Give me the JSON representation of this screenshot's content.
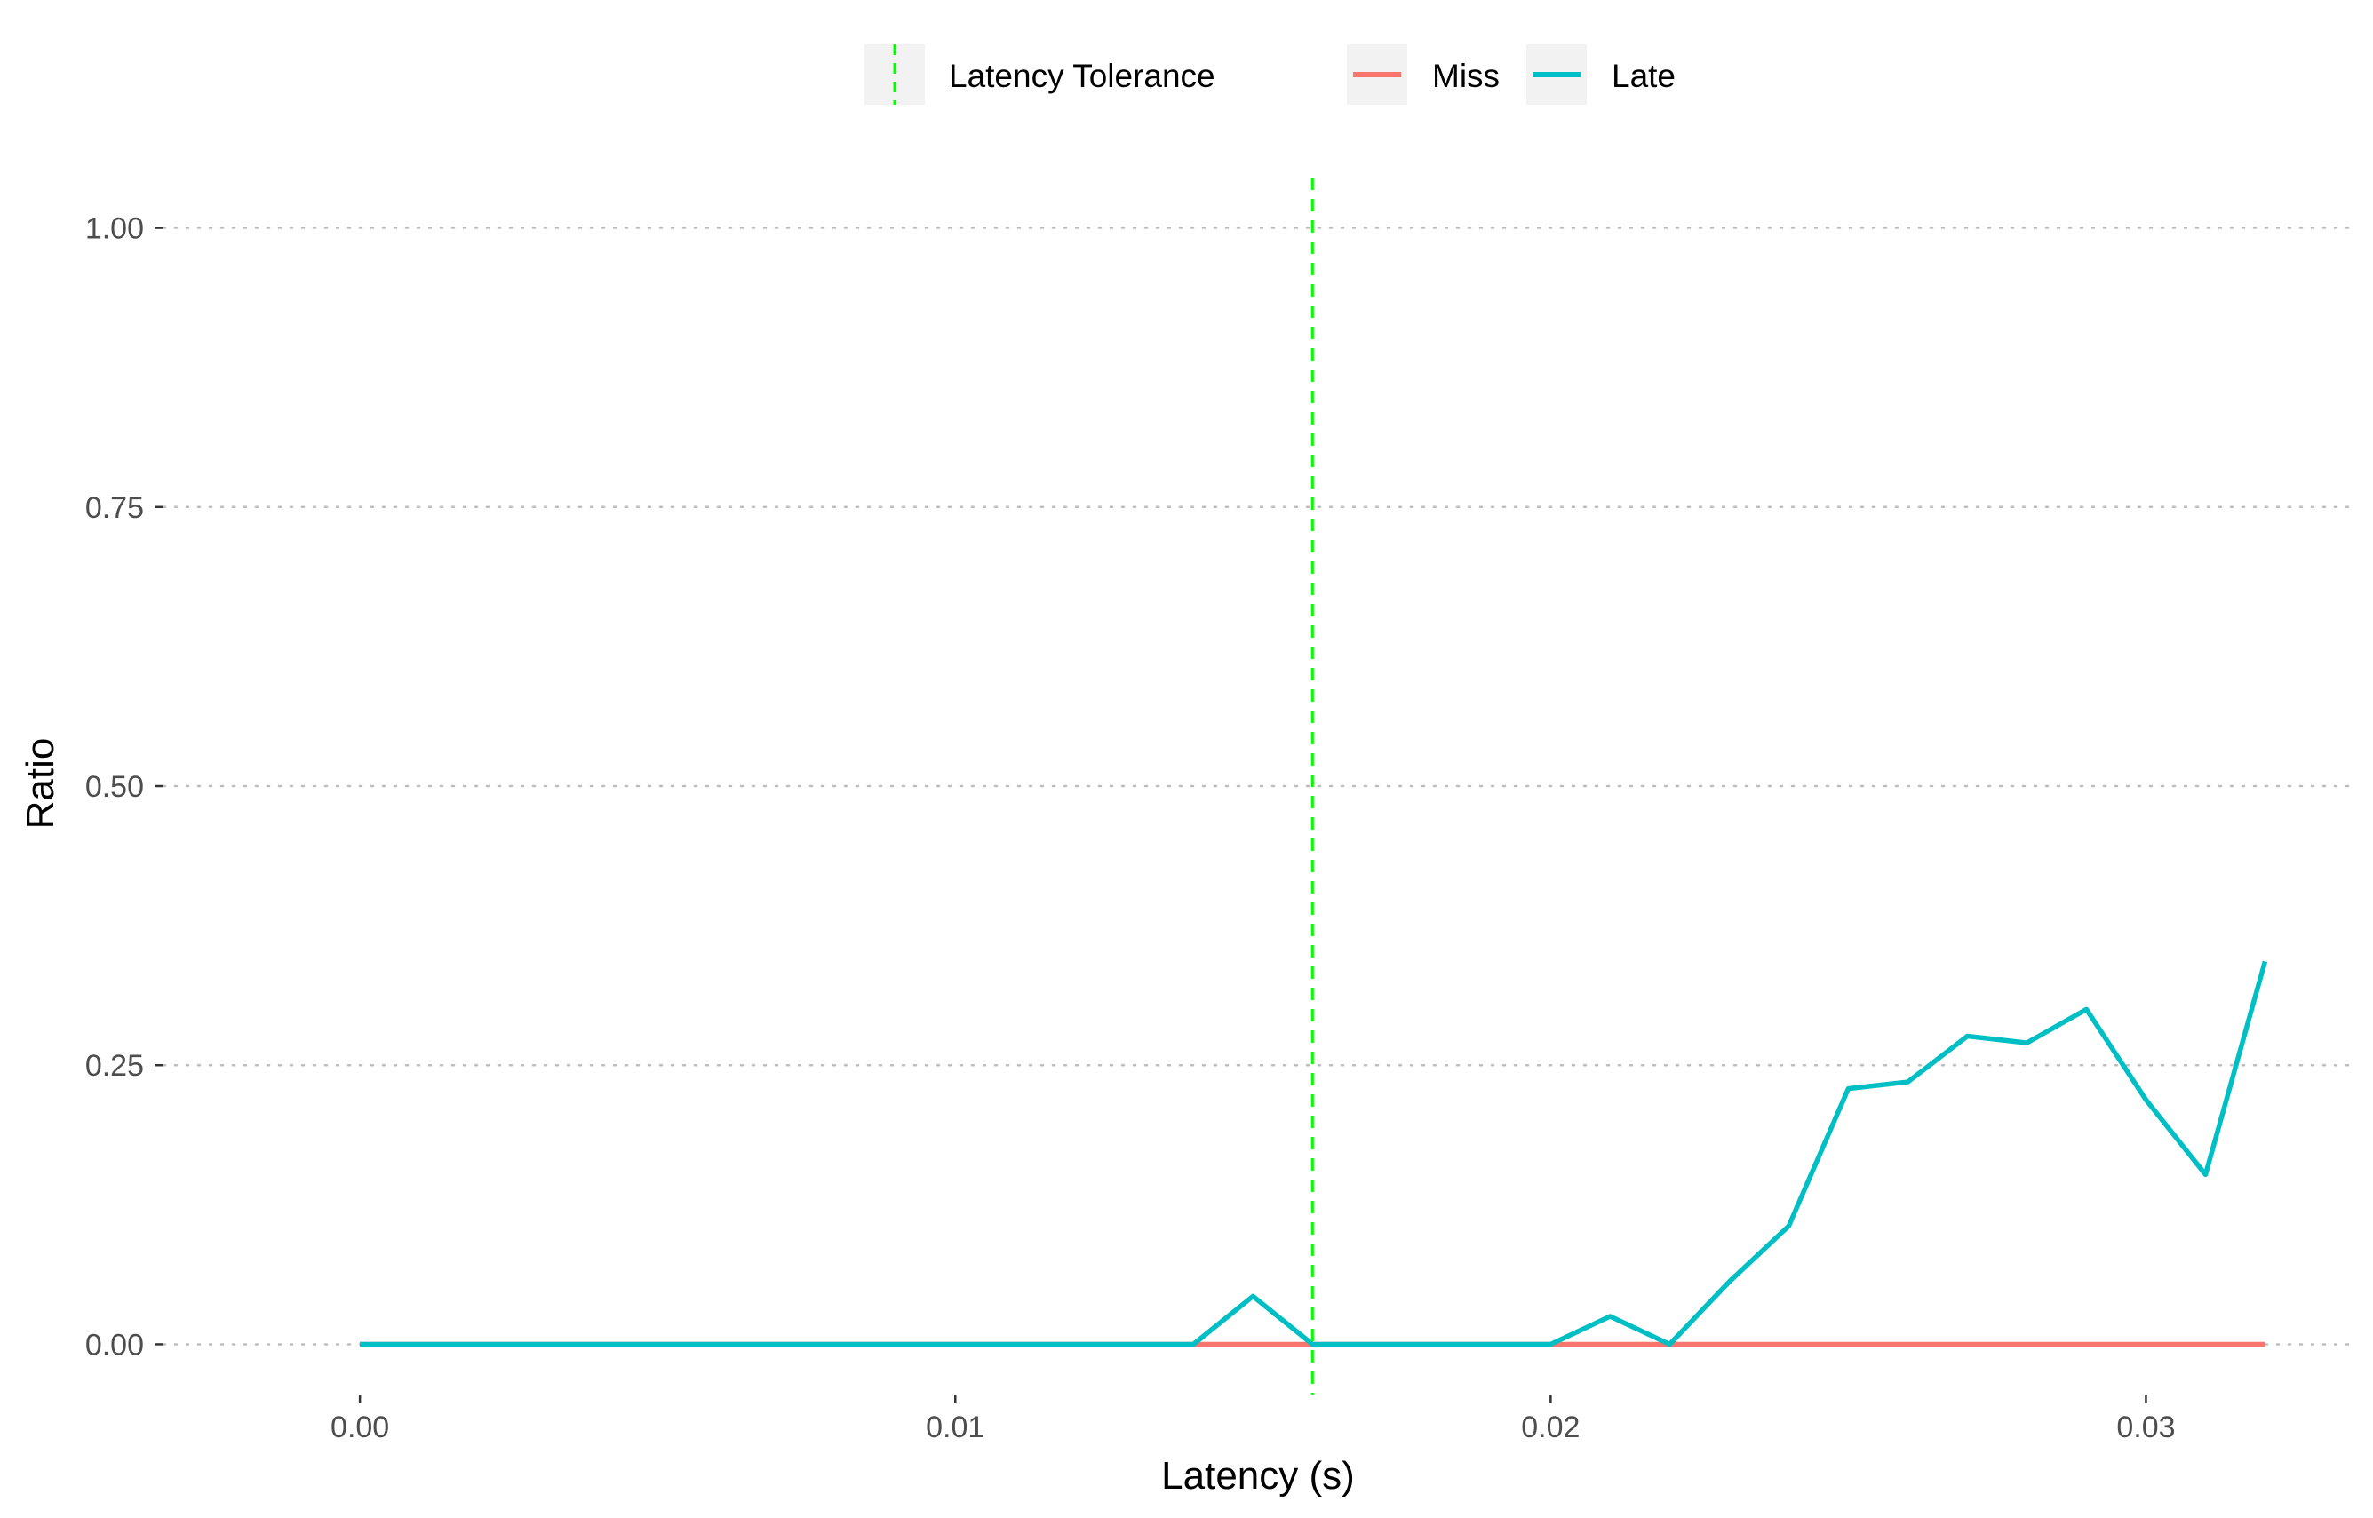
{
  "chart_data": {
    "type": "line",
    "xlabel": "Latency (s)",
    "ylabel": "Ratio",
    "xlim": [
      -0.0033,
      0.0335
    ],
    "ylim": [
      -0.045,
      1.045
    ],
    "x_ticks": [
      0.0,
      0.01,
      0.02,
      0.03
    ],
    "x_tick_labels": [
      "0.00",
      "0.01",
      "0.02",
      "0.03"
    ],
    "y_ticks": [
      0.0,
      0.25,
      0.5,
      0.75,
      1.0
    ],
    "y_tick_labels": [
      "0.00",
      "0.25",
      "0.50",
      "0.75",
      "1.00"
    ],
    "grid": "horizontal dotted",
    "legend_position": "top",
    "reference_line": {
      "name": "Latency Tolerance",
      "x": 0.016,
      "color": "#00ff00",
      "style": "dashed"
    },
    "x": [
      0.0,
      0.001,
      0.002,
      0.003,
      0.004,
      0.005,
      0.006,
      0.007,
      0.008,
      0.009,
      0.01,
      0.011,
      0.012,
      0.013,
      0.014,
      0.015,
      0.016,
      0.017,
      0.018,
      0.019,
      0.02,
      0.021,
      0.022,
      0.023,
      0.024,
      0.025,
      0.026,
      0.027,
      0.028,
      0.029,
      0.03,
      0.031,
      0.032
    ],
    "series": [
      {
        "name": "Miss",
        "color": "#f8766d",
        "values": [
          0,
          0,
          0,
          0,
          0,
          0,
          0,
          0,
          0,
          0,
          0,
          0,
          0,
          0,
          0,
          0,
          0,
          0,
          0,
          0,
          0,
          0,
          0,
          0,
          0,
          0,
          0,
          0,
          0,
          0,
          0,
          0,
          0
        ]
      },
      {
        "name": "Late",
        "color": "#00bfc4",
        "values": [
          0,
          0,
          0,
          0,
          0,
          0,
          0,
          0,
          0,
          0,
          0,
          0,
          0,
          0,
          0,
          0.043,
          0,
          0,
          0,
          0,
          0,
          0.025,
          0,
          0.056,
          0.106,
          0.229,
          0.235,
          0.276,
          0.27,
          0.3,
          0.219,
          0.152,
          0.343
        ]
      }
    ]
  },
  "legend": {
    "tolerance_label": "Latency Tolerance",
    "miss_label": "Miss",
    "late_label": "Late"
  }
}
